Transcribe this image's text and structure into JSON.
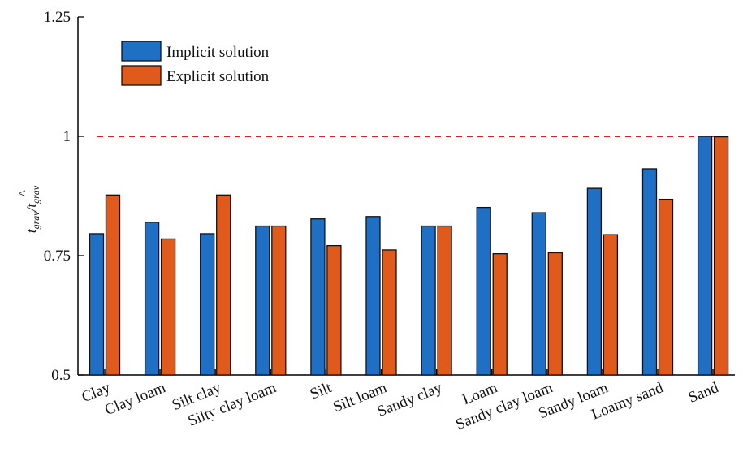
{
  "chart_data": {
    "type": "bar",
    "categories": [
      "Clay",
      "Clay loam",
      "Silt clay",
      "Silty clay loam",
      "Silt",
      "Silt loam",
      "Sandy clay",
      "Loam",
      "Sandy clay loam",
      "Sandy loam",
      "Loamy sand",
      "Sand"
    ],
    "series": [
      {
        "name": "Implicit solution",
        "color": "#1f6fc5",
        "values": [
          0.796,
          0.82,
          0.796,
          0.812,
          0.827,
          0.832,
          0.812,
          0.851,
          0.84,
          0.891,
          0.932,
          1.0
        ]
      },
      {
        "name": "Explicit solution",
        "color": "#e05a1c",
        "values": [
          0.877,
          0.785,
          0.877,
          0.812,
          0.771,
          0.762,
          0.812,
          0.754,
          0.756,
          0.794,
          0.868,
          0.999
        ]
      }
    ],
    "ylabel_main": "t",
    "ylabel_sub": "grav",
    "ylim": [
      0.5,
      1.25
    ],
    "yticks": [
      "0.5",
      "0.75",
      "1",
      "1.25"
    ],
    "reference_line": {
      "y": 1.0,
      "style": "dashed",
      "color": "#e02020"
    },
    "legend_position": "top-left",
    "grid": false
  }
}
